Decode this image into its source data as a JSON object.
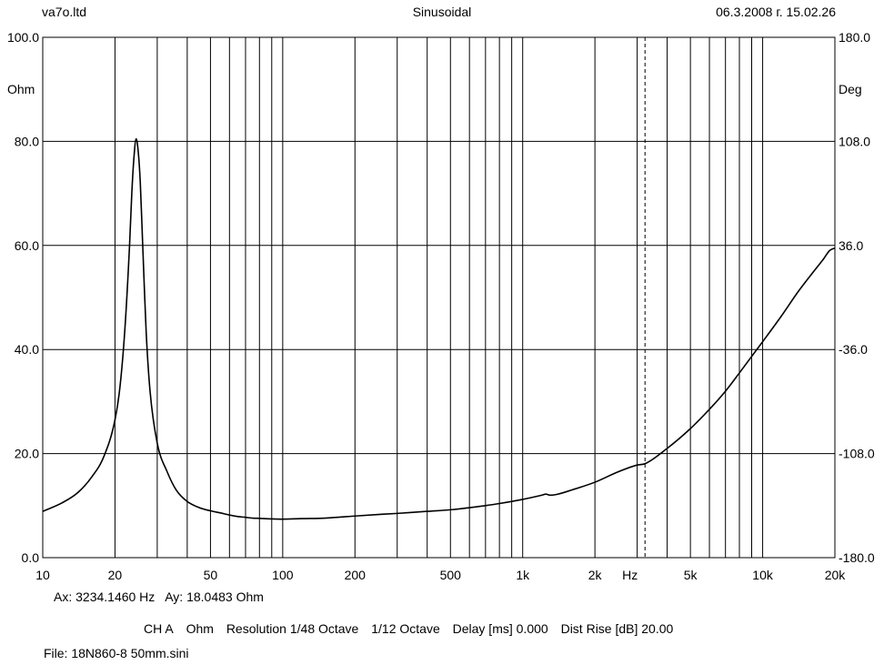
{
  "header": {
    "company": "va7o.ltd",
    "mode": "Sinusoidal",
    "datetime": "06.3.2008 г. 15.02.26"
  },
  "chart_data": {
    "type": "line",
    "xscale": "log",
    "xlim": [
      10,
      20000
    ],
    "ylim": [
      0,
      100
    ],
    "y2lim": [
      -180,
      180
    ],
    "grid": true,
    "x_ticks": [
      {
        "v": 10,
        "label": "10"
      },
      {
        "v": 20,
        "label": "20"
      },
      {
        "v": 50,
        "label": "50"
      },
      {
        "v": 100,
        "label": "100"
      },
      {
        "v": 200,
        "label": "200"
      },
      {
        "v": 500,
        "label": "500"
      },
      {
        "v": 1000,
        "label": "1k"
      },
      {
        "v": 2000,
        "label": "2k"
      },
      {
        "v": 5000,
        "label": "5k"
      },
      {
        "v": 10000,
        "label": "10k"
      },
      {
        "v": 20000,
        "label": "20k"
      }
    ],
    "x_unit": "Hz",
    "y_ticks": [
      {
        "v": 0,
        "label": "0.0"
      },
      {
        "v": 20,
        "label": "20.0"
      },
      {
        "v": 40,
        "label": "40.0"
      },
      {
        "v": 60,
        "label": "60.0"
      },
      {
        "v": 80,
        "label": "80.0"
      },
      {
        "v": 100,
        "label": "100.0"
      }
    ],
    "y_unit": "Ohm",
    "y2_ticks": [
      {
        "v": -180,
        "label": "-180.0"
      },
      {
        "v": -108,
        "label": "-108.0"
      },
      {
        "v": -36,
        "label": "-36.0"
      },
      {
        "v": 36,
        "label": "36.0"
      },
      {
        "v": 108,
        "label": "108.0"
      },
      {
        "v": 180,
        "label": "180.0"
      }
    ],
    "y2_unit": "Deg",
    "cursor_x": 3234.146,
    "series": [
      {
        "x": [
          10,
          12,
          14,
          16,
          18,
          20,
          21,
          22,
          23,
          23.5,
          24,
          24.5,
          25,
          25.5,
          26,
          26.5,
          27,
          28,
          30,
          33,
          36,
          40,
          45,
          50,
          55,
          60,
          65,
          70,
          75,
          80,
          90,
          100,
          120,
          150,
          200,
          250,
          300,
          400,
          500,
          600,
          700,
          800,
          1000,
          1200,
          1250,
          1300,
          1400,
          1600,
          2000,
          2500,
          3000,
          3234,
          4000,
          5000,
          6000,
          7000,
          8000,
          10000,
          12000,
          14000,
          16000,
          18000,
          19000,
          20000
        ],
        "y": [
          8.9,
          10.5,
          12.5,
          15.5,
          19.5,
          26.5,
          33,
          44,
          60,
          70,
          77,
          80.5,
          78,
          72,
          62,
          52,
          43,
          32,
          22,
          16.5,
          13,
          10.8,
          9.6,
          9.0,
          8.6,
          8.2,
          7.9,
          7.75,
          7.6,
          7.55,
          7.45,
          7.4,
          7.5,
          7.6,
          8.0,
          8.3,
          8.5,
          8.9,
          9.2,
          9.6,
          10.0,
          10.4,
          11.2,
          12.0,
          12.2,
          12.0,
          12.2,
          13.0,
          14.5,
          16.5,
          17.8,
          18.05,
          21.0,
          24.8,
          28.5,
          32.0,
          35.5,
          41.5,
          46.5,
          51.0,
          54.5,
          57.5,
          59.0,
          59.5
        ]
      }
    ]
  },
  "status": {
    "ax": "Ax: 3234.1460 Hz",
    "ay": "Ay: 18.0483 Ohm"
  },
  "settings": {
    "channel": "CH A",
    "unit": "Ohm",
    "resolution": "Resolution 1/48 Octave",
    "smoothing": "1/12 Octave",
    "delay": "Delay [ms] 0.000",
    "dist_rise": "Dist Rise [dB] 20.00"
  },
  "file": "File: 18N860-8 50mm.sini"
}
